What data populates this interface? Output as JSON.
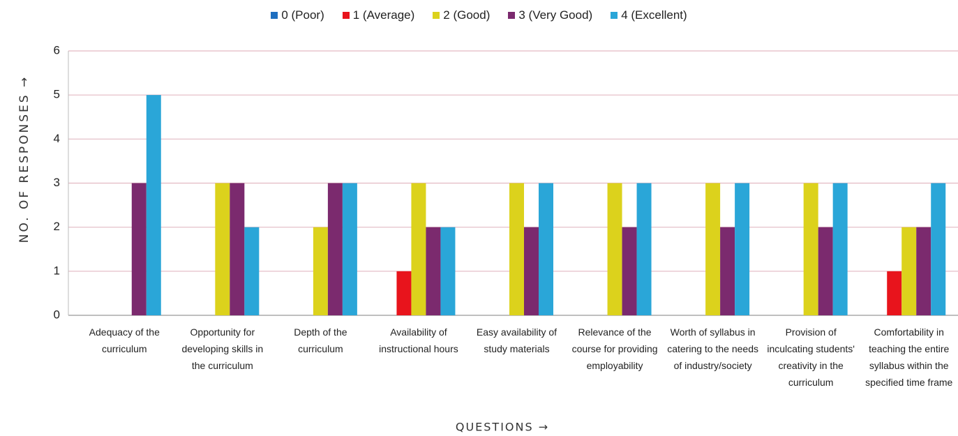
{
  "chart_data": {
    "type": "bar",
    "categories": [
      "Adequacy of the curriculum",
      "Opportunity for developing skills in the curriculum",
      "Depth of the curriculum",
      "Availability of instructional hours",
      "Easy availability of study materials",
      "Relevance of the course for providing employability",
      "Worth of syllabus in catering to the needs of industry/society",
      "Provision of inculcating students' creativity in the curriculum",
      "Comfortability in teaching the entire syllabus within the specified time frame"
    ],
    "series": [
      {
        "name": "0 (Poor)",
        "color": "#1f6fc0",
        "values": [
          0,
          0,
          0,
          0,
          0,
          0,
          0,
          0,
          0
        ]
      },
      {
        "name": "1 (Average)",
        "color": "#e8141c",
        "values": [
          0,
          0,
          0,
          1,
          0,
          0,
          0,
          0,
          1
        ]
      },
      {
        "name": "2 (Good)",
        "color": "#dcd21c",
        "values": [
          0,
          3,
          2,
          3,
          3,
          3,
          3,
          3,
          2
        ]
      },
      {
        "name": "3 (Very Good)",
        "color": "#7b2a6e",
        "values": [
          3,
          3,
          3,
          2,
          2,
          2,
          2,
          2,
          2
        ]
      },
      {
        "name": "4 (Excellent)",
        "color": "#2aa6d8",
        "values": [
          5,
          2,
          3,
          2,
          3,
          3,
          3,
          3,
          3
        ]
      }
    ],
    "ylim": [
      0,
      6
    ],
    "yticks": [
      0,
      1,
      2,
      3,
      4,
      5,
      6
    ],
    "grid": true,
    "legend": "top",
    "ylabel": "NO. OF RESPONSES →",
    "xlabel": "QUESTIONS →"
  }
}
